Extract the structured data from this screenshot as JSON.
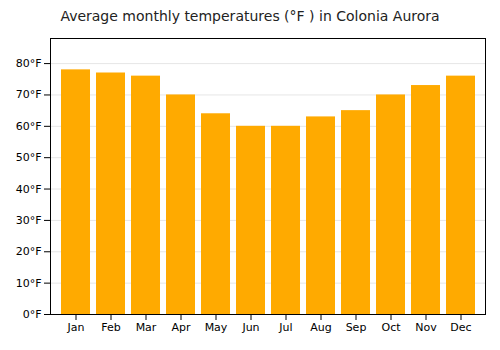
{
  "chart_data": {
    "type": "bar",
    "title": "Average monthly temperatures (°F ) in Colonia Aurora",
    "categories": [
      "Jan",
      "Feb",
      "Mar",
      "Apr",
      "May",
      "Jun",
      "Jul",
      "Aug",
      "Sep",
      "Oct",
      "Nov",
      "Dec"
    ],
    "values": [
      78,
      77,
      76,
      70,
      64,
      60,
      60,
      63,
      65,
      70,
      73,
      76
    ],
    "color": "#FFAA00",
    "ylim": [
      0,
      88
    ],
    "yticks": [
      {
        "value": 0,
        "label": "0°F"
      },
      {
        "value": 10,
        "label": "10°F"
      },
      {
        "value": 20,
        "label": "20°F"
      },
      {
        "value": 30,
        "label": "30°F"
      },
      {
        "value": 40,
        "label": "40°F"
      },
      {
        "value": 50,
        "label": "50°F"
      },
      {
        "value": 60,
        "label": "60°F"
      },
      {
        "value": 70,
        "label": "70°F"
      },
      {
        "value": 80,
        "label": "80°F"
      }
    ],
    "grid": true
  }
}
